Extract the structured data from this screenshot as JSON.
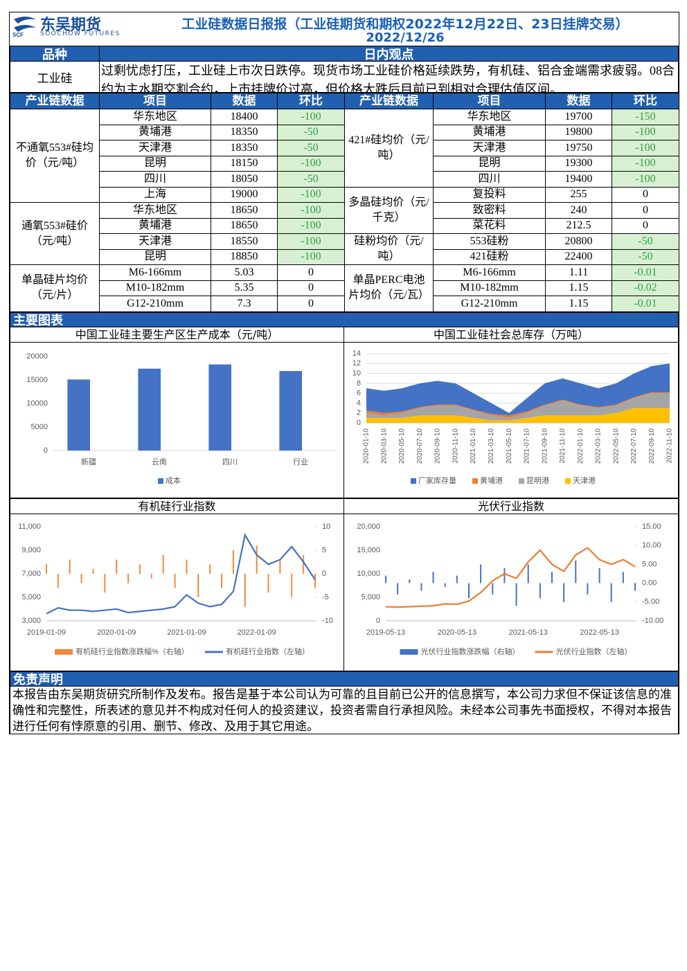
{
  "header": {
    "logo_cn": "东吴期货",
    "logo_en": "SOOCHOW FUTURES",
    "title": "工业硅数据日报报（工业硅期货和期权2022年12月22日、23日挂牌交易）",
    "date": "2022/12/26"
  },
  "view": {
    "headers": [
      "品种",
      "日内观点"
    ],
    "product": "工业硅",
    "text": "过剩忧虑打压，工业硅上市次日跌停。现货市场工业硅价格延续跌势，有机硅、铝合金端需求疲弱。08合约为主水期交割合约，上市挂牌价过高，但价格大跌后目前已到相对合理估值区间。"
  },
  "chain": {
    "headers": [
      "产业链数据",
      "项目",
      "数据",
      "环比",
      "产业链数据",
      "项目",
      "数据",
      "环比"
    ],
    "left": [
      {
        "label": "不通氧553#硅均价（元/吨）",
        "rows": [
          [
            "华东地区",
            18400,
            -100
          ],
          [
            "黄埔港",
            18350,
            -50
          ],
          [
            "天津港",
            18350,
            -50
          ],
          [
            "昆明",
            18150,
            -100
          ],
          [
            "四川",
            18050,
            -50
          ],
          [
            "上海",
            19000,
            -100
          ]
        ]
      },
      {
        "label": "通氧553#硅价（元/吨）",
        "rows": [
          [
            "华东地区",
            18650,
            -100
          ],
          [
            "黄埔港",
            18650,
            -100
          ],
          [
            "天津港",
            18550,
            -100
          ],
          [
            "昆明",
            18850,
            -100
          ]
        ]
      },
      {
        "label": "单晶硅片均价（元/片）",
        "rows": [
          [
            "M6-166mm",
            5.03,
            0
          ],
          [
            "M10-182mm",
            5.35,
            0
          ],
          [
            "G12-210mm",
            7.3,
            0
          ]
        ]
      }
    ],
    "right": [
      {
        "label": "421#硅均价（元/吨）",
        "rows": [
          [
            "华东地区",
            19700,
            -150
          ],
          [
            "黄埔港",
            19800,
            -100
          ],
          [
            "天津港",
            19750,
            -100
          ],
          [
            "昆明",
            19300,
            -100
          ],
          [
            "四川",
            19400,
            -100
          ]
        ]
      },
      {
        "label": "多晶硅均价（元/千克）",
        "rows": [
          [
            "复投料",
            255,
            0
          ],
          [
            "致密料",
            240,
            0
          ],
          [
            "菜花料",
            212.5,
            0
          ]
        ]
      },
      {
        "label": "硅粉均价（元/吨）",
        "rows": [
          [
            "553硅粉",
            20800,
            -50
          ],
          [
            "421硅粉",
            22400,
            -50
          ]
        ]
      },
      {
        "label": "单晶PERC电池片均价（元/瓦）",
        "rows": [
          [
            "M6-166mm",
            1.11,
            -0.01
          ],
          [
            "M10-182mm",
            1.15,
            -0.02
          ],
          [
            "G12-210mm",
            1.15,
            -0.01
          ]
        ]
      }
    ]
  },
  "sections": {
    "charts": "主要图表",
    "disclaimer": "免责声明"
  },
  "charts": [
    {
      "type": "bar",
      "title": "中国工业硅主要生产区生产成本（元/吨）",
      "categories": [
        "新疆",
        "云南",
        "四川",
        "行业"
      ],
      "series": [
        {
          "name": "成本",
          "color": "#4472c4",
          "values": [
            15100,
            17400,
            18300,
            16900
          ]
        }
      ],
      "ylim": [
        0,
        20000
      ],
      "yticks": [
        0,
        5000,
        10000,
        15000,
        20000
      ],
      "legend": "bottom"
    },
    {
      "type": "stacked_area",
      "title": "中国工业硅社会总库存（万吨）",
      "categories": [
        "2020-01-10",
        "2020-03-10",
        "2020-05-10",
        "2020-07-10",
        "2020-09-10",
        "2020-11-10",
        "2021-01-10",
        "2021-03-10",
        "2021-05-10",
        "2021-07-10",
        "2021-09-10",
        "2021-11-10",
        "2022-01-10",
        "2022-03-10",
        "2022-05-10",
        "2022-07-10",
        "2022-09-10",
        "2022-11-10"
      ],
      "series": [
        {
          "name": "厂家库存量",
          "color": "#4472c4",
          "values": [
            4.5,
            4.5,
            4.7,
            4.8,
            4.8,
            4.3,
            3.3,
            2.2,
            0.5,
            2.7,
            4.3,
            4.3,
            4.3,
            3.8,
            4.3,
            4.8,
            5.3,
            5.8
          ]
        },
        {
          "name": "黄埔港",
          "color": "#ed7d31",
          "values": [
            0.5,
            0.5,
            0.3,
            0.2,
            0.2,
            0.2,
            0.2,
            0.3,
            0.5,
            0.3,
            0.2,
            0.2,
            0.2,
            0.2,
            0.2,
            0.2,
            0.2,
            0.2
          ]
        },
        {
          "name": "昆明港",
          "color": "#a5a5a5",
          "values": [
            1,
            0.5,
            1,
            1.5,
            2,
            2,
            1.5,
            1,
            0.5,
            1,
            2,
            3,
            2,
            1.5,
            1.5,
            2,
            3,
            3
          ]
        },
        {
          "name": "天津港",
          "color": "#ffc000",
          "values": [
            1,
            1,
            1,
            1.5,
            1.5,
            1.5,
            1,
            0.5,
            0.5,
            1,
            1.5,
            1.5,
            1.5,
            1.5,
            2,
            3,
            3,
            3
          ]
        }
      ],
      "ylim": [
        0,
        14
      ],
      "yticks": [
        0,
        2,
        4,
        6,
        8,
        10,
        12,
        14
      ],
      "grid": true,
      "legend": "bottom"
    },
    {
      "type": "line",
      "title": "有机硅行业指数",
      "categories": [
        "2019-01-09",
        null,
        null,
        null,
        null,
        null,
        "2020-01-09",
        null,
        null,
        null,
        null,
        null,
        "2021-01-09",
        null,
        null,
        null,
        null,
        null,
        "2022-01-09",
        null,
        null,
        null,
        null,
        null
      ],
      "series": [
        {
          "name": "有机硅行业指数涨跌幅%（右轴）",
          "color": "#f4883a",
          "axis": "y2",
          "type": "bar",
          "values": [
            2,
            -3,
            3,
            -2,
            1,
            -4,
            3,
            -2,
            2,
            -1,
            4,
            -3,
            3,
            -5,
            2,
            -3,
            5,
            -7,
            6,
            -4,
            3,
            -5,
            4,
            -3
          ]
        },
        {
          "name": "有机硅行业指数（左轴）",
          "color": "#4472c4",
          "values": [
            3600,
            4100,
            3900,
            3900,
            3800,
            3900,
            4000,
            3700,
            3800,
            3900,
            4000,
            4200,
            5200,
            4500,
            4200,
            4400,
            5500,
            10300,
            8600,
            7800,
            8200,
            9300,
            8000,
            6500
          ]
        }
      ],
      "ylim": [
        3000,
        11000
      ],
      "yticks": [
        {
          "value": 3000,
          "label": "3,000"
        },
        {
          "value": 5000,
          "label": "5,000"
        },
        {
          "value": 7000,
          "label": "7,000"
        },
        {
          "value": 9000,
          "label": "9,000"
        },
        {
          "value": 11000,
          "label": "11,000"
        }
      ],
      "y2lim": [
        -10,
        10
      ],
      "y2ticks": [
        -10,
        -5,
        0,
        5,
        10
      ],
      "legend": "bottom"
    },
    {
      "type": "line",
      "title": "光伏行业指数",
      "categories": [
        "2019-05-13",
        null,
        null,
        null,
        null,
        null,
        "2020-05-13",
        null,
        null,
        null,
        null,
        null,
        "2021-05-13",
        null,
        null,
        null,
        null,
        null,
        "2022-05-13",
        null,
        null,
        null
      ],
      "series": [
        {
          "name": "光伏行业指数涨跌幅（右轴）",
          "color": "#4472c4",
          "axis": "y2",
          "type": "bar",
          "values": [
            2,
            -3,
            1,
            -2,
            3,
            -1,
            2,
            -4,
            5,
            -3,
            4,
            -6,
            5,
            -4,
            3,
            -5,
            6,
            -3,
            4,
            -5,
            3,
            -2
          ]
        },
        {
          "name": "光伏行业指数（左轴）",
          "color": "#ed7d31",
          "values": [
            3000,
            2900,
            3000,
            3100,
            3200,
            3600,
            3500,
            4200,
            6000,
            8500,
            10000,
            9000,
            12500,
            15000,
            12000,
            10500,
            14000,
            15500,
            13000,
            12000,
            13000,
            11500
          ]
        }
      ],
      "ylim": [
        0,
        20000
      ],
      "yticks": [
        0,
        {
          "value": 5000,
          "label": "5,000"
        },
        {
          "value": 10000,
          "label": "10,000"
        },
        {
          "value": 15000,
          "label": "15,000"
        },
        {
          "value": 20000,
          "label": "20,000"
        }
      ],
      "y2lim": [
        -10,
        15
      ],
      "y2ticks": [
        {
          "value": -10,
          "label": "-10.00"
        },
        {
          "value": -5,
          "label": "-5.00"
        },
        {
          "value": 0,
          "label": "0.00"
        },
        {
          "value": 5,
          "label": "5.00"
        },
        {
          "value": 10,
          "label": "10.00"
        },
        {
          "value": 15,
          "label": "15.00"
        }
      ],
      "legend": "bottom"
    }
  ],
  "disclaimer": "本报告由东吴期货研究所制作及发布。报告是基于本公司认为可靠的且目前已公开的信息撰写，本公司力求但不保证该信息的准确性和完整性，所表述的意见并不构成对任何人的投资建议，投资者需自行承担风险。未经本公司事先书面授权，不得对本报告进行任何有悖原意的引用、删节、修改、及用于其它用途。"
}
